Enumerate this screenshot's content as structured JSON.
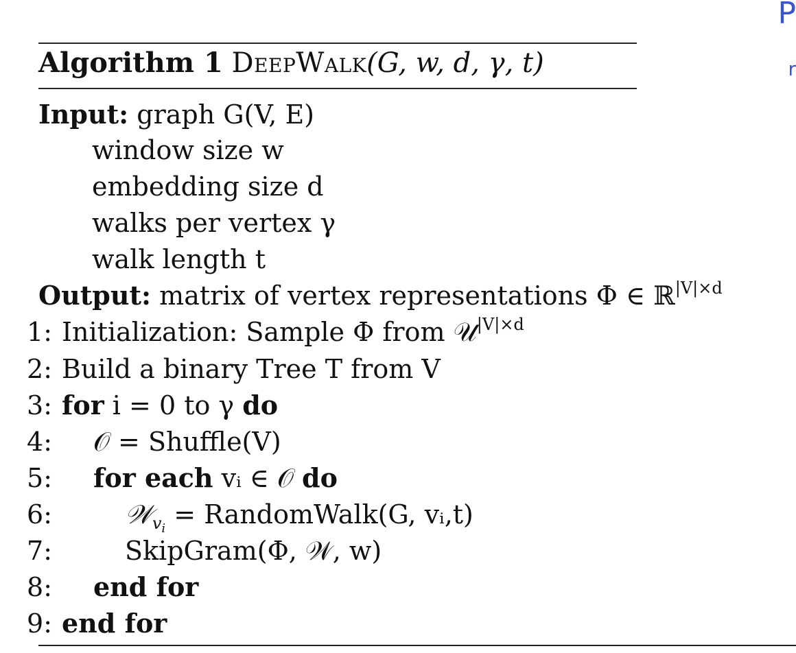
{
  "algorithm": {
    "label": "Algorithm 1",
    "name": "DeepWalk",
    "params": "(G, w, d, γ, t)"
  },
  "input": {
    "keyword": "Input:",
    "items": [
      "graph G(V, E)",
      "window size w",
      "embedding size d",
      "walks per vertex γ",
      "walk length t"
    ]
  },
  "output": {
    "keyword": "Output:",
    "text": "matrix of vertex representations Φ ∈ ℝ",
    "sup": "|V|×d"
  },
  "steps": [
    {
      "num": "1:",
      "text": "Initialization: Sample Φ from 𝒰",
      "sup": "|V|×d"
    },
    {
      "num": "2:",
      "text": "Build a binary Tree T from V"
    },
    {
      "num": "3:",
      "kw1": "for",
      "text": " i = 0 to γ ",
      "kw2": "do"
    },
    {
      "num": "4:",
      "text": "𝒪 = Shuffle(V)"
    },
    {
      "num": "5:",
      "kw1": "for each",
      "text": " vᵢ ∈ 𝒪 ",
      "kw2": "do"
    },
    {
      "num": "6:",
      "text": "= RandomWalk(G, vᵢ,t)"
    },
    {
      "num": "7:",
      "text": "SkipGram(Φ, 𝒲, w)"
    },
    {
      "num": "8:",
      "kw1": "end for"
    },
    {
      "num": "9:",
      "kw1": "end for"
    }
  ],
  "margin_note": [
    "P",
    "r"
  ]
}
